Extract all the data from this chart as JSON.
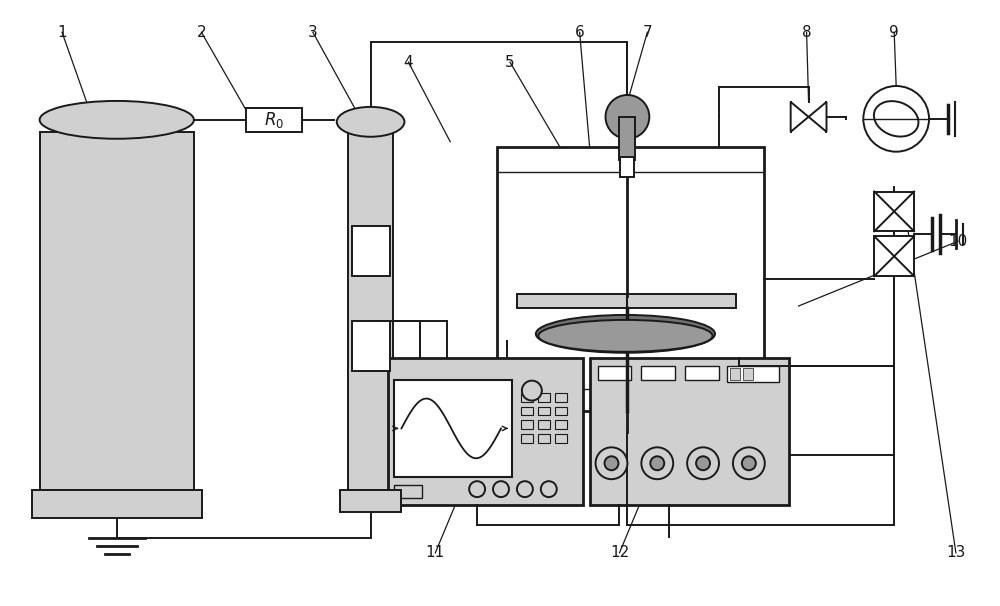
{
  "bg": "#ffffff",
  "lc": "#1a1a1a",
  "fl": "#d0d0d0",
  "fm": "#999999",
  "fd": "#707070",
  "fw": 10.0,
  "fh": 6.06,
  "dpi": 100,
  "lw": 1.4
}
